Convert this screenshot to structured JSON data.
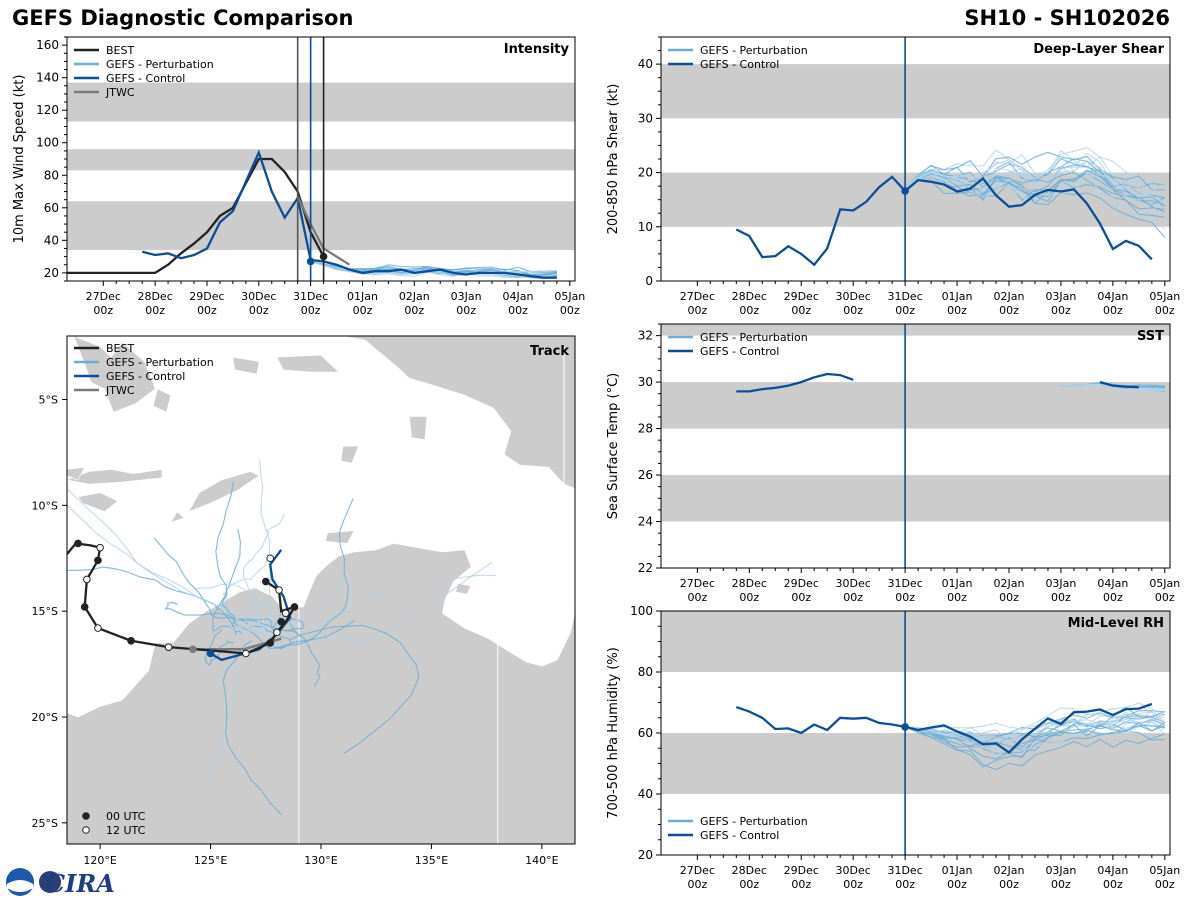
{
  "title_left": "GEFS Diagnostic Comparison",
  "title_right": "SH10 - SH102026",
  "logo_text": "CIRA",
  "colors": {
    "best": "#222222",
    "pert": "#6aaed6",
    "pert_light": "#b5d4ea",
    "ctrl": "#0b4e96",
    "jtwc": "#7a7a7a",
    "band": "#cccccc",
    "land": "#cccccc"
  },
  "time_ticks": [
    "27Dec 00z",
    "28Dec 00z",
    "29Dec 00z",
    "30Dec 00z",
    "31Dec 00z",
    "01Jan 00z",
    "02Jan 00z",
    "03Jan 00z",
    "04Jan 00z",
    "05Jan 00z"
  ],
  "time_range_days": [
    -0.7,
    9.1
  ],
  "chart_data": [
    {
      "id": "intensity",
      "type": "line",
      "title": "Intensity",
      "ylabel": "10m Max Wind Speed (kt)",
      "ylim": [
        15,
        165
      ],
      "yticks": [
        20,
        40,
        60,
        80,
        100,
        120,
        140,
        160
      ],
      "bands": [
        [
          34,
          64
        ],
        [
          83,
          96
        ],
        [
          113,
          137
        ]
      ],
      "vlines": [
        {
          "x": 3.75,
          "color": "#555555"
        },
        {
          "x": 4.0,
          "color": "#0b4e96"
        },
        {
          "x": 4.25,
          "color": "#222222"
        }
      ],
      "legend": [
        "BEST",
        "GEFS - Perturbation",
        "GEFS - Control",
        "JTWC"
      ],
      "series": [
        {
          "name": "BEST",
          "kind": "best",
          "x": [
            -0.7,
            -0.5,
            0,
            0.5,
            1,
            1.25,
            1.5,
            1.75,
            2,
            2.25,
            2.5,
            2.75,
            3,
            3.25,
            3.5,
            3.75,
            4,
            4.25
          ],
          "y": [
            20,
            20,
            20,
            20,
            20,
            25,
            32,
            38,
            45,
            55,
            60,
            75,
            90,
            90,
            82,
            70,
            45,
            30
          ]
        },
        {
          "name": "GEFS - Control",
          "kind": "ctrl",
          "x": [
            0.75,
            1,
            1.25,
            1.5,
            1.75,
            2,
            2.25,
            2.5,
            2.75,
            3,
            3.25,
            3.5,
            3.75,
            4,
            4.25,
            4.5,
            4.75,
            5,
            5.25,
            5.5,
            5.75,
            6,
            6.25,
            6.5,
            6.75,
            7,
            7.25,
            7.5,
            7.75,
            8,
            8.25,
            8.5,
            8.75
          ],
          "y": [
            33,
            31,
            32,
            29,
            31,
            35,
            51,
            58,
            76,
            94,
            70,
            54,
            66,
            28,
            27,
            25,
            22,
            20,
            21,
            21,
            22,
            20,
            21,
            22,
            20,
            19,
            20,
            20,
            20,
            19,
            18,
            17,
            17
          ]
        },
        {
          "name": "JTWC",
          "kind": "jtwc",
          "x": [
            3.75,
            4,
            4.25,
            4.75
          ],
          "y": [
            67,
            50,
            35,
            25
          ]
        }
      ],
      "markers": [
        {
          "x": 4.25,
          "y": 30,
          "kind": "best"
        },
        {
          "x": 4.0,
          "y": 27,
          "kind": "ctrl"
        }
      ],
      "pert_start": 4.0,
      "pert_base": [
        27,
        25,
        23,
        22,
        21,
        21,
        22,
        21,
        21,
        22,
        21,
        20,
        21,
        21,
        21,
        20,
        20,
        19,
        19,
        20
      ],
      "pert_spread": 6
    },
    {
      "id": "shear",
      "type": "line",
      "title": "Deep-Layer Shear",
      "ylabel": "200-850 hPa Shear (kt)",
      "ylim": [
        0,
        45
      ],
      "yticks": [
        0,
        10,
        20,
        30,
        40
      ],
      "bands": [
        [
          10,
          20
        ],
        [
          30,
          40
        ]
      ],
      "vlines": [
        {
          "x": 4.0,
          "color": "#0b4e96"
        }
      ],
      "legend": [
        "GEFS - Perturbation",
        "GEFS - Control"
      ],
      "series": [
        {
          "name": "GEFS - Control",
          "kind": "ctrl",
          "x": [
            0.75,
            1,
            1.25,
            1.5,
            1.75,
            2,
            2.25,
            2.5,
            2.75,
            3,
            3.25,
            3.5,
            3.75,
            4,
            4.25,
            4.5,
            4.75,
            5,
            5.25,
            5.5,
            5.75,
            6,
            6.25,
            6.5,
            6.75,
            7,
            7.25,
            7.5,
            7.75,
            8,
            8.25,
            8.5,
            8.75
          ],
          "y": [
            9.5,
            8.3,
            4.4,
            4.6,
            6.4,
            5.0,
            3.0,
            6.0,
            13.2,
            13.0,
            14.6,
            17.3,
            19.2,
            16.6,
            18.6,
            18.3,
            17.8,
            16.5,
            17.0,
            18.9,
            15.8,
            13.7,
            14.0,
            15.9,
            16.8,
            16.5,
            16.9,
            14.3,
            10.6,
            5.9,
            7.4,
            6.5,
            4.0
          ]
        }
      ],
      "markers": [
        {
          "x": 4.0,
          "y": 16.6,
          "kind": "ctrl"
        }
      ],
      "pert_start": 4.0,
      "pert_base": [
        17,
        19,
        20,
        19,
        19,
        18,
        17,
        19,
        19,
        18,
        17,
        18,
        20,
        20,
        21,
        20,
        18,
        17,
        16,
        15,
        15,
        15,
        14,
        13,
        13,
        12,
        12
      ],
      "pert_spread": 9
    },
    {
      "id": "sst",
      "type": "line",
      "title": "SST",
      "ylabel": "Sea Surface Temp (°C)",
      "ylim": [
        22,
        32.5
      ],
      "yticks": [
        22,
        24,
        26,
        28,
        30,
        32
      ],
      "bands": [
        [
          24,
          26
        ],
        [
          28,
          30
        ],
        [
          32,
          34
        ]
      ],
      "vlines": [
        {
          "x": 4.0,
          "color": "#0b4e96"
        }
      ],
      "legend": [
        "GEFS - Perturbation",
        "GEFS - Control"
      ],
      "series": [
        {
          "name": "GEFS - Control",
          "kind": "ctrl",
          "x": [
            0.75,
            1,
            1.25,
            1.5,
            1.75,
            2,
            2.25,
            2.5,
            2.75,
            3
          ],
          "y": [
            29.6,
            29.6,
            29.7,
            29.75,
            29.85,
            30.0,
            30.2,
            30.35,
            30.3,
            30.1
          ]
        },
        {
          "name": "GEFS - Control (late)",
          "kind": "ctrl",
          "x": [
            7.75,
            8,
            8.25,
            8.5
          ],
          "y": [
            30.0,
            29.85,
            29.8,
            29.78
          ]
        }
      ],
      "markers": [],
      "pert_start": 7.0,
      "pert_base": [
        29.85,
        29.85,
        29.9,
        29.9,
        29.85,
        29.8,
        29.75,
        29.75,
        29.7,
        29.65
      ],
      "pert_spread": 0.3
    },
    {
      "id": "rh",
      "type": "line",
      "title": "Mid-Level RH",
      "ylabel": "700-500 hPa Humidity (%)",
      "ylim": [
        20,
        100
      ],
      "yticks": [
        20,
        40,
        60,
        80,
        100
      ],
      "bands": [
        [
          40,
          60
        ],
        [
          80,
          100
        ]
      ],
      "vlines": [
        {
          "x": 4.0,
          "color": "#0b4e96"
        }
      ],
      "legend": [
        "GEFS - Perturbation",
        "GEFS - Control"
      ],
      "series": [
        {
          "name": "GEFS - Control",
          "kind": "ctrl",
          "x": [
            0.75,
            1,
            1.25,
            1.5,
            1.75,
            2,
            2.25,
            2.5,
            2.75,
            3,
            3.25,
            3.5,
            3.75,
            4,
            4.25,
            4.5,
            4.75,
            5,
            5.25,
            5.5,
            5.75,
            6,
            6.25,
            6.5,
            6.75,
            7,
            7.25,
            7.5,
            7.75,
            8,
            8.25,
            8.5,
            8.75
          ],
          "y": [
            68.5,
            67,
            65,
            61.3,
            61.5,
            60,
            62.8,
            61,
            65,
            64.7,
            65,
            63.3,
            62.8,
            62,
            61,
            61.8,
            62.5,
            60.5,
            58.9,
            56.3,
            56.6,
            53.6,
            57.9,
            61.4,
            64.8,
            63,
            66.8,
            67,
            67.7,
            65.9,
            67.8,
            68,
            69.5
          ]
        }
      ],
      "markers": [
        {
          "x": 4.0,
          "y": 62,
          "kind": "ctrl"
        }
      ],
      "pert_start": 4.0,
      "pert_base": [
        62,
        61,
        60,
        59,
        58,
        57,
        56,
        56,
        55,
        56,
        58,
        60,
        61,
        62,
        62,
        63,
        63,
        64,
        64,
        64,
        63,
        63,
        63,
        63,
        63,
        62,
        62,
        62,
        62,
        62
      ],
      "pert_spread": 12
    },
    {
      "id": "track",
      "type": "scatter",
      "title": "Track",
      "xlim": [
        118.5,
        141.5
      ],
      "ylim": [
        -26,
        -2
      ],
      "xticks": [
        {
          "v": 120,
          "label": "120°E"
        },
        {
          "v": 125,
          "label": "125°E"
        },
        {
          "v": 130,
          "label": "130°E"
        },
        {
          "v": 135,
          "label": "135°E"
        },
        {
          "v": 140,
          "label": "140°E"
        }
      ],
      "yticks": [
        {
          "v": -5,
          "label": "5°S"
        },
        {
          "v": -10,
          "label": "10°S"
        },
        {
          "v": -15,
          "label": "15°S"
        },
        {
          "v": -20,
          "label": "20°S"
        },
        {
          "v": -25,
          "label": "25°S"
        }
      ],
      "legend": [
        "BEST",
        "GEFS - Perturbation",
        "GEFS - Control",
        "JTWC"
      ],
      "marker_legend": [
        "00 UTC",
        "12 UTC"
      ],
      "best_track": [
        [
          127.5,
          -13.6
        ],
        [
          128.1,
          -14.0
        ],
        [
          128.2,
          -15.0
        ],
        [
          128.8,
          -14.8
        ],
        [
          128.4,
          -15.5
        ],
        [
          128.0,
          -16.0
        ],
        [
          127.7,
          -16.5
        ],
        [
          126.6,
          -17.0
        ],
        [
          125.5,
          -16.9
        ],
        [
          123.1,
          -16.7
        ],
        [
          121.4,
          -16.4
        ],
        [
          119.9,
          -15.8
        ],
        [
          119.3,
          -14.8
        ],
        [
          119.4,
          -13.5
        ],
        [
          119.9,
          -12.6
        ],
        [
          120.0,
          -12.0
        ],
        [
          119.6,
          -11.9
        ],
        [
          118.9,
          -11.8
        ],
        [
          118.5,
          -12.3
        ]
      ],
      "best_points": [
        [
          127.5,
          -13.6,
          "00"
        ],
        [
          128.1,
          -14.0,
          "12"
        ],
        [
          128.8,
          -14.8,
          "00"
        ],
        [
          128.4,
          -15.1,
          "12"
        ],
        [
          128.2,
          -15.5,
          "00"
        ],
        [
          128.0,
          -16.0,
          "12"
        ],
        [
          127.7,
          -16.5,
          "00"
        ],
        [
          126.6,
          -17.0,
          "12"
        ],
        [
          123.1,
          -16.7,
          "12"
        ],
        [
          121.4,
          -16.4,
          "00"
        ],
        [
          119.9,
          -15.8,
          "12"
        ],
        [
          119.3,
          -14.8,
          "00"
        ],
        [
          119.4,
          -13.5,
          "12"
        ],
        [
          119.9,
          -12.6,
          "00"
        ],
        [
          120.0,
          -12.0,
          "12"
        ],
        [
          119.0,
          -11.8,
          "00"
        ],
        [
          127.7,
          -12.5,
          "12"
        ]
      ],
      "ctrl_track": [
        [
          128.2,
          -12.1
        ],
        [
          127.7,
          -12.8
        ],
        [
          127.8,
          -13.5
        ],
        [
          128.3,
          -14.3
        ],
        [
          128.6,
          -15.3
        ],
        [
          128.0,
          -16.1
        ],
        [
          127.2,
          -16.8
        ],
        [
          126.2,
          -17.1
        ],
        [
          125.5,
          -17.3
        ],
        [
          125.0,
          -17.0
        ]
      ],
      "ctrl_points": [
        [
          125.0,
          -17.0
        ]
      ],
      "jtwc_track": [
        [
          128.2,
          -16.3
        ],
        [
          126.5,
          -16.8
        ],
        [
          125.5,
          -16.8
        ],
        [
          124.2,
          -16.8
        ]
      ],
      "jtwc_points": [
        [
          124.2,
          -16.8
        ]
      ]
    }
  ]
}
